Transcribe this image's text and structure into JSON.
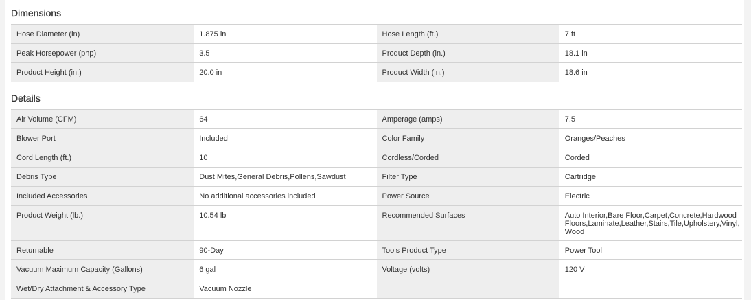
{
  "dimensions": {
    "title": "Dimensions",
    "rows": [
      [
        "Hose Diameter (in)",
        "1.875 in",
        "Hose Length (ft.)",
        "7 ft"
      ],
      [
        "Peak Horsepower (php)",
        "3.5",
        "Product Depth (in.)",
        "18.1 in"
      ],
      [
        "Product Height (in.)",
        "20.0 in",
        "Product Width (in.)",
        "18.6 in"
      ]
    ]
  },
  "details": {
    "title": "Details",
    "rows": [
      [
        "Air Volume (CFM)",
        "64",
        "Amperage (amps)",
        "7.5"
      ],
      [
        "Blower Port",
        "Included",
        "Color Family",
        "Oranges/Peaches"
      ],
      [
        "Cord Length (ft.)",
        "10",
        "Cordless/Corded",
        "Corded"
      ],
      [
        "Debris Type",
        "Dust Mites,General Debris,Pollens,Sawdust",
        "Filter Type",
        "Cartridge"
      ],
      [
        "Included Accessories",
        "No additional accessories included",
        "Power Source",
        "Electric"
      ],
      [
        "Product Weight (lb.)",
        "10.54 lb",
        "Recommended Surfaces",
        "Auto Interior,Bare Floor,Carpet,Concrete,Hardwood Floors,Laminate,Leather,Stairs,Tile,Upholstery,Vinyl, Wood"
      ],
      [
        "Returnable",
        "90-Day",
        "Tools Product Type",
        "Power Tool"
      ],
      [
        "Vacuum Maximum Capacity (Gallons)",
        "6 gal",
        "Voltage (volts)",
        "120 V"
      ],
      [
        "Wet/Dry Attachment & Accessory Type",
        "Vacuum Nozzle",
        "",
        ""
      ]
    ]
  }
}
